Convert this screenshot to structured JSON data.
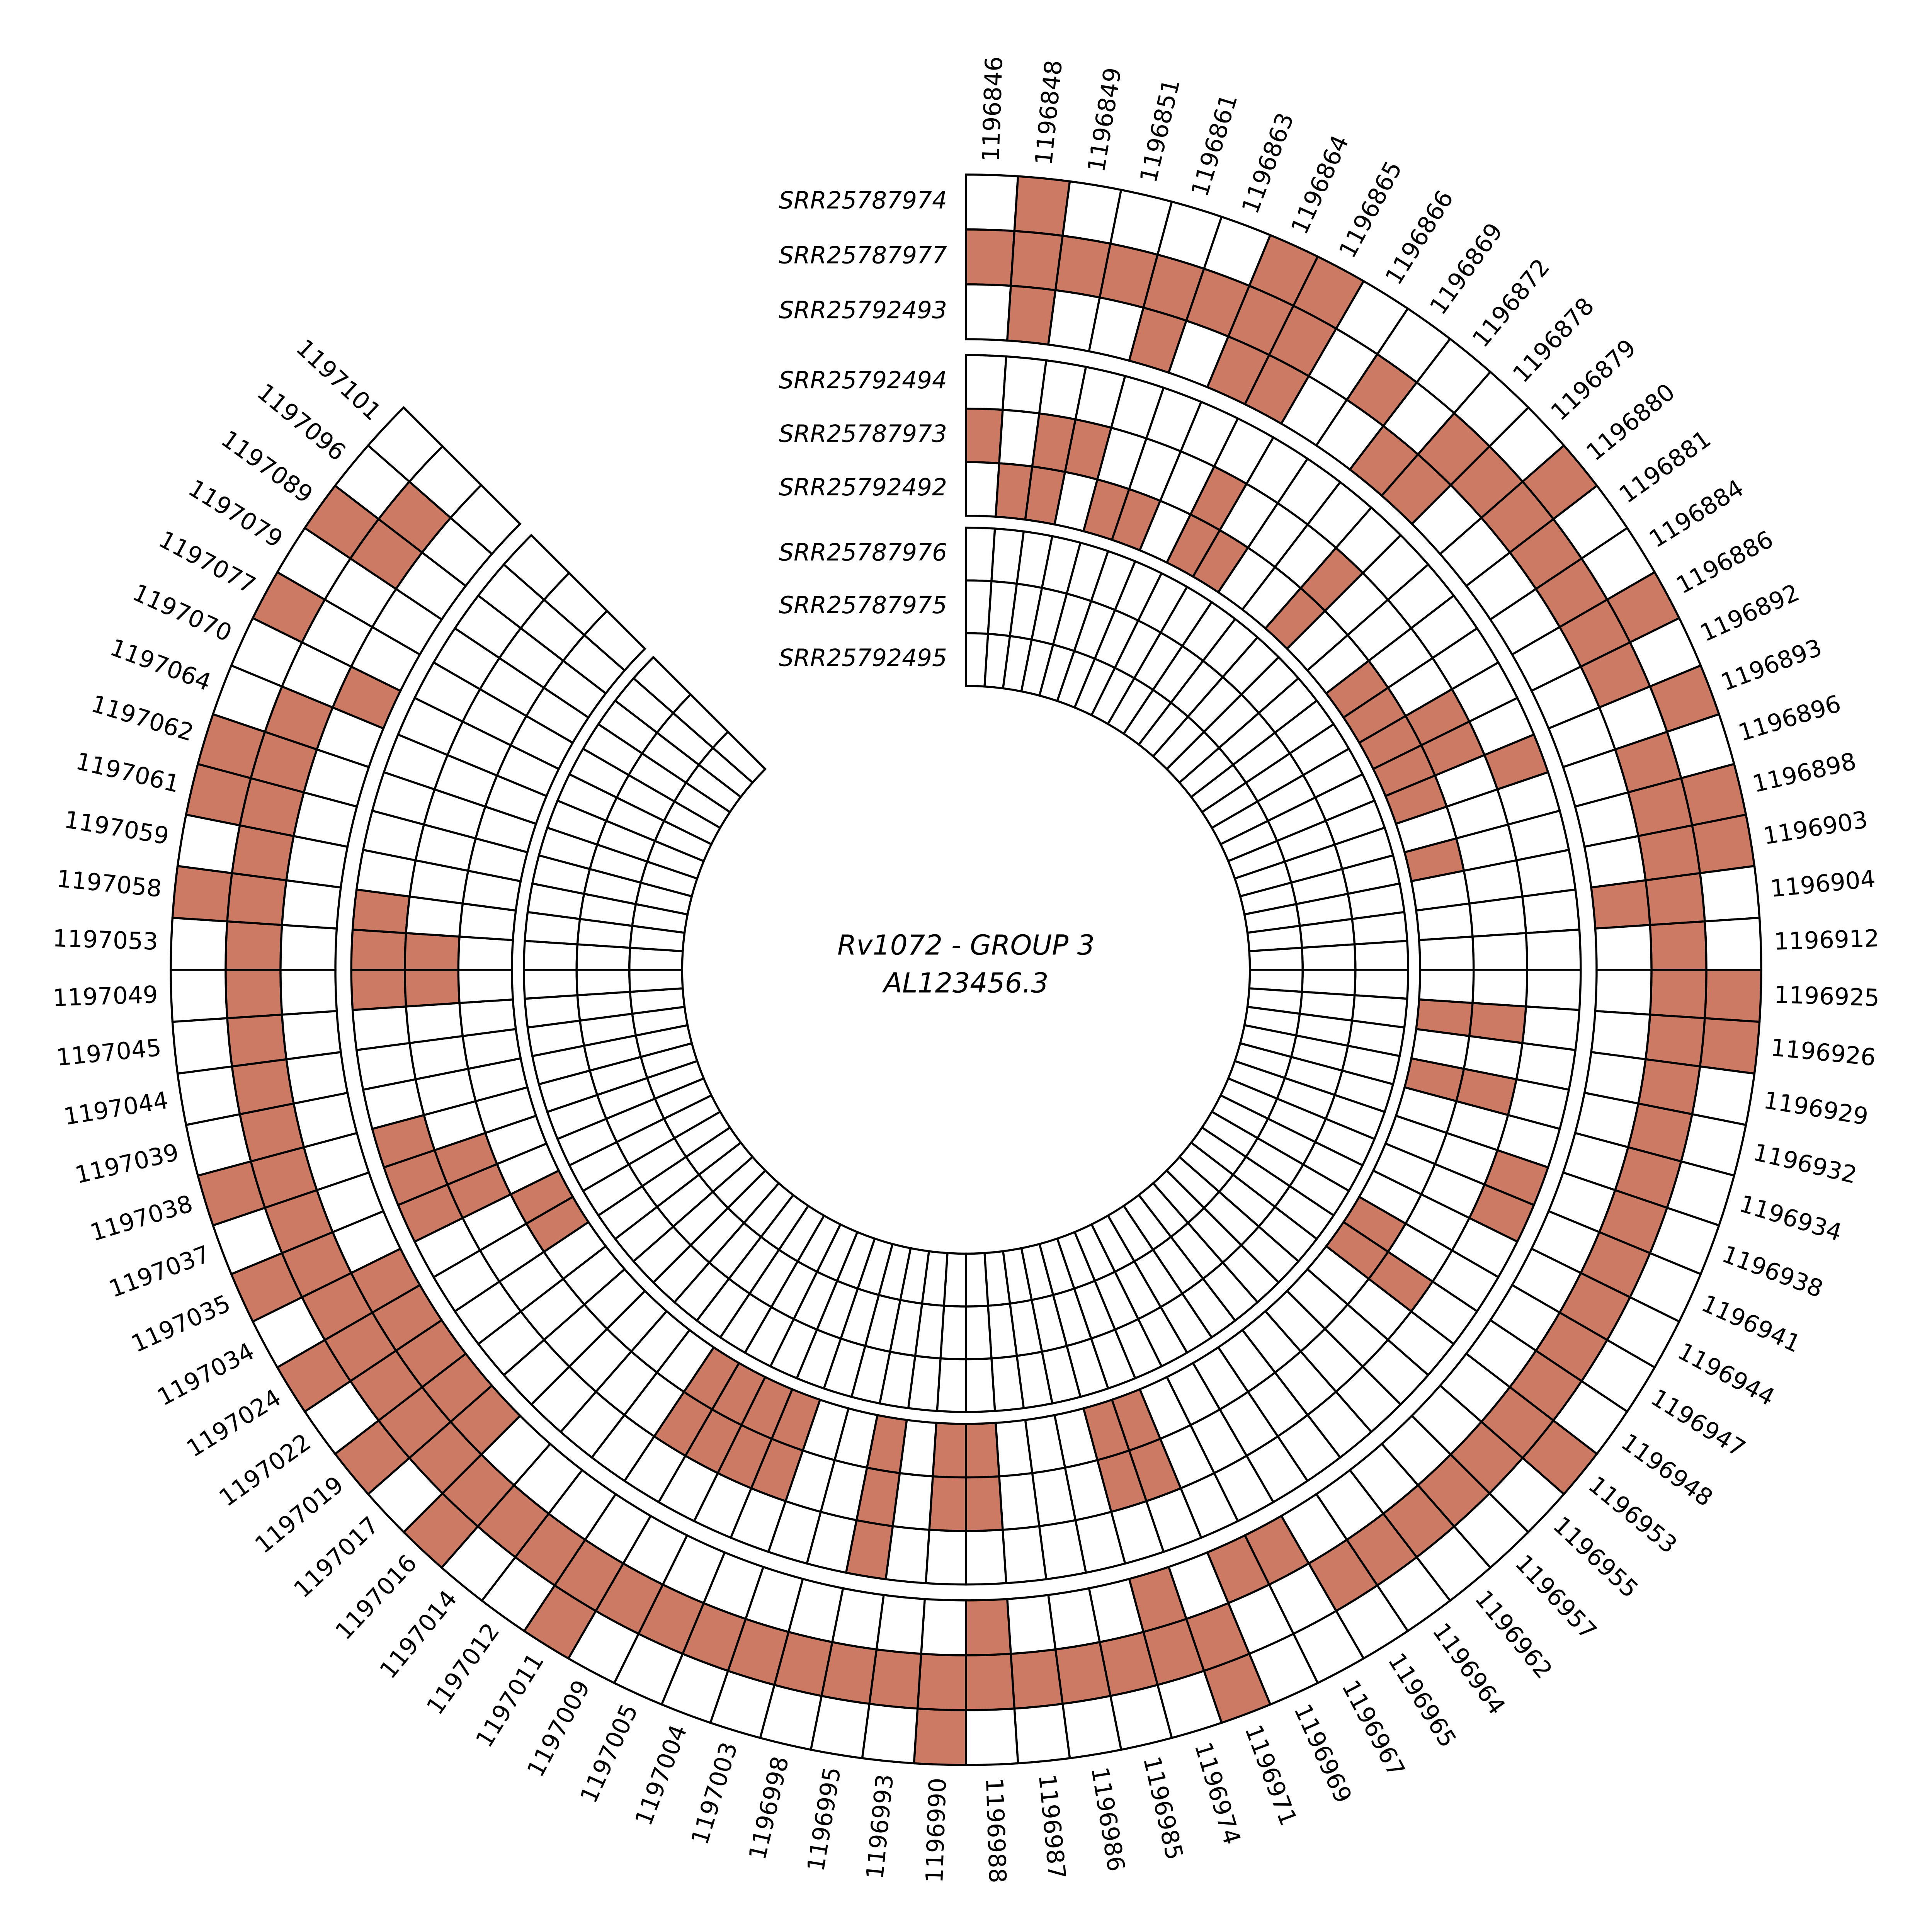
{
  "title": {
    "line1": "Rv1072 - GROUP 3",
    "line2": "AL123456.3"
  },
  "colors": {
    "filled": "#cd7a65",
    "empty": "#ffffff",
    "stroke": "#000000",
    "background": "#ffffff"
  },
  "chart_data": {
    "type": "heatmap",
    "subtype": "circular_annular_heatmap",
    "start_angle_deg": 0,
    "total_angle_deg": 315,
    "clockwise": true,
    "ring_groups": [
      {
        "rings": [
          "SRR25787974",
          "SRR25787977",
          "SRR25792493"
        ],
        "r_inner_frac": 0.793,
        "r_outer_frac": 1.0
      },
      {
        "rings": [
          "SRR25792494",
          "SRR25787973",
          "SRR25792492"
        ],
        "r_inner_frac": 0.571,
        "r_outer_frac": 0.773
      },
      {
        "rings": [
          "SRR25787976",
          "SRR25787975",
          "SRR25792495"
        ],
        "r_inner_frac": 0.357,
        "r_outer_frac": 0.556
      }
    ],
    "positions": [
      "1196846",
      "1196848",
      "1196849",
      "1196851",
      "1196861",
      "1196863",
      "1196864",
      "1196865",
      "1196866",
      "1196869",
      "1196872",
      "1196878",
      "1196879",
      "1196880",
      "1196881",
      "1196884",
      "1196886",
      "1196892",
      "1196893",
      "1196896",
      "1196898",
      "1196903",
      "1196904",
      "1196912",
      "1196925",
      "1196926",
      "1196929",
      "1196932",
      "1196934",
      "1196938",
      "1196941",
      "1196944",
      "1196947",
      "1196948",
      "1196953",
      "1196955",
      "1196957",
      "1196962",
      "1196964",
      "1196965",
      "1196967",
      "1196969",
      "1196971",
      "1196974",
      "1196985",
      "1196986",
      "1196987",
      "1196988",
      "1196990",
      "1196993",
      "1196995",
      "1196998",
      "1197003",
      "1197004",
      "1197005",
      "1197009",
      "1197011",
      "1197012",
      "1197014",
      "1197016",
      "1197017",
      "1197019",
      "1197022",
      "1197024",
      "1197034",
      "1197035",
      "1197037",
      "1197038",
      "1197039",
      "1197044",
      "1197045",
      "1197049",
      "1197053",
      "1197058",
      "1197059",
      "1197061",
      "1197062",
      "1197064",
      "1197070",
      "1197077",
      "1197079",
      "1197089",
      "1197096",
      "1197101"
    ],
    "rings": [
      {
        "name": "SRR25787974",
        "fills": [
          0,
          1,
          0,
          0,
          0,
          0,
          1,
          1,
          0,
          0,
          0,
          0,
          0,
          1,
          0,
          0,
          1,
          0,
          1,
          0,
          1,
          1,
          0,
          0,
          1,
          1,
          0,
          0,
          0,
          0,
          0,
          0,
          0,
          0,
          1,
          0,
          0,
          0,
          0,
          0,
          0,
          0,
          1,
          0,
          0,
          0,
          0,
          0,
          1,
          0,
          0,
          0,
          0,
          0,
          0,
          0,
          1,
          0,
          0,
          1,
          0,
          1,
          0,
          1,
          0,
          1,
          0,
          1,
          0,
          0,
          0,
          0,
          0,
          1,
          0,
          1,
          1,
          0,
          0,
          1,
          0,
          1,
          0,
          0
        ]
      },
      {
        "name": "SRR25787977",
        "fills": [
          1,
          1,
          1,
          1,
          1,
          1,
          1,
          1,
          0,
          1,
          0,
          1,
          1,
          1,
          1,
          1,
          1,
          1,
          0,
          1,
          1,
          1,
          1,
          1,
          1,
          1,
          1,
          1,
          1,
          1,
          1,
          1,
          1,
          1,
          1,
          1,
          1,
          1,
          1,
          1,
          0,
          0,
          1,
          1,
          1,
          1,
          1,
          1,
          1,
          1,
          1,
          1,
          1,
          1,
          1,
          1,
          1,
          1,
          1,
          1,
          1,
          1,
          1,
          1,
          1,
          1,
          1,
          1,
          1,
          1,
          1,
          1,
          1,
          1,
          1,
          1,
          1,
          1,
          0,
          0,
          0,
          1,
          1,
          0
        ]
      },
      {
        "name": "SRR25792493",
        "fills": [
          0,
          1,
          0,
          0,
          1,
          0,
          1,
          1,
          0,
          0,
          1,
          1,
          0,
          0,
          0,
          0,
          0,
          0,
          0,
          0,
          0,
          0,
          1,
          0,
          0,
          0,
          0,
          0,
          0,
          0,
          0,
          0,
          0,
          0,
          0,
          0,
          0,
          0,
          0,
          0,
          1,
          1,
          0,
          1,
          0,
          0,
          0,
          1,
          0,
          0,
          0,
          0,
          0,
          0,
          0,
          0,
          0,
          0,
          0,
          0,
          1,
          1,
          1,
          1,
          1,
          0,
          0,
          0,
          0,
          0,
          0,
          0,
          0,
          0,
          0,
          0,
          0,
          0,
          1,
          0,
          0,
          0,
          0,
          0
        ]
      },
      {
        "name": "SRR25792494",
        "fills": [
          0,
          0,
          0,
          0,
          0,
          0,
          0,
          0,
          0,
          0,
          0,
          0,
          0,
          0,
          0,
          0,
          0,
          0,
          1,
          0,
          0,
          0,
          0,
          0,
          0,
          0,
          0,
          0,
          0,
          1,
          1,
          0,
          0,
          0,
          0,
          0,
          0,
          0,
          0,
          0,
          0,
          0,
          0,
          0,
          0,
          0,
          0,
          0,
          0,
          0,
          1,
          0,
          0,
          0,
          0,
          0,
          0,
          0,
          0,
          0,
          0,
          0,
          0,
          0,
          0,
          1,
          1,
          1,
          0,
          0,
          0,
          1,
          1,
          1,
          0,
          0,
          0,
          0,
          0,
          0,
          0,
          0,
          0,
          0
        ]
      },
      {
        "name": "SRR25787973",
        "fills": [
          1,
          0,
          1,
          1,
          0,
          0,
          0,
          1,
          0,
          0,
          0,
          1,
          0,
          0,
          0,
          0,
          1,
          1,
          0,
          0,
          0,
          0,
          0,
          0,
          0,
          1,
          0,
          1,
          0,
          0,
          0,
          0,
          0,
          1,
          0,
          0,
          0,
          0,
          0,
          0,
          0,
          0,
          1,
          1,
          0,
          0,
          0,
          1,
          1,
          0,
          1,
          0,
          0,
          1,
          1,
          1,
          1,
          0,
          0,
          0,
          0,
          0,
          0,
          0,
          0,
          1,
          1,
          0,
          0,
          0,
          0,
          1,
          1,
          0,
          0,
          0,
          0,
          0,
          0,
          0,
          0,
          0,
          0,
          0
        ]
      },
      {
        "name": "SRR25792492",
        "fills": [
          0,
          1,
          1,
          0,
          1,
          1,
          0,
          1,
          1,
          0,
          0,
          1,
          0,
          0,
          1,
          1,
          1,
          1,
          1,
          0,
          1,
          0,
          0,
          0,
          0,
          1,
          0,
          1,
          0,
          0,
          0,
          0,
          1,
          1,
          0,
          0,
          0,
          0,
          0,
          0,
          0,
          0,
          1,
          1,
          0,
          0,
          0,
          1,
          1,
          0,
          1,
          0,
          0,
          1,
          1,
          1,
          1,
          0,
          0,
          0,
          0,
          0,
          0,
          1,
          1,
          0,
          0,
          0,
          0,
          0,
          0,
          0,
          0,
          0,
          0,
          0,
          0,
          0,
          0,
          0,
          0,
          0,
          0,
          0
        ]
      },
      {
        "name": "SRR25787976",
        "fills": [
          0,
          0,
          0,
          0,
          0,
          0,
          0,
          0,
          0,
          0,
          0,
          0,
          0,
          0,
          0,
          0,
          0,
          0,
          0,
          0,
          0,
          0,
          0,
          0,
          0,
          0,
          0,
          0,
          0,
          0,
          0,
          0,
          0,
          0,
          0,
          0,
          0,
          0,
          0,
          0,
          0,
          0,
          0,
          0,
          0,
          0,
          0,
          0,
          0,
          0,
          0,
          0,
          0,
          0,
          0,
          0,
          0,
          0,
          0,
          0,
          0,
          0,
          0,
          0,
          0,
          0,
          0,
          0,
          0,
          0,
          0,
          0,
          0,
          0,
          0,
          0,
          0,
          0,
          0,
          0,
          0,
          0,
          0,
          0
        ]
      },
      {
        "name": "SRR25787975",
        "fills": [
          0,
          0,
          0,
          0,
          0,
          0,
          0,
          0,
          0,
          0,
          0,
          0,
          0,
          0,
          0,
          0,
          0,
          0,
          0,
          0,
          0,
          0,
          0,
          0,
          0,
          0,
          0,
          0,
          0,
          0,
          0,
          0,
          0,
          0,
          0,
          0,
          0,
          0,
          0,
          0,
          0,
          0,
          0,
          0,
          0,
          0,
          0,
          0,
          0,
          0,
          0,
          0,
          0,
          0,
          0,
          0,
          0,
          0,
          0,
          0,
          0,
          0,
          0,
          0,
          0,
          0,
          0,
          0,
          0,
          0,
          0,
          0,
          0,
          0,
          0,
          0,
          0,
          0,
          0,
          0,
          0,
          0,
          0,
          0
        ]
      },
      {
        "name": "SRR25792495",
        "fills": [
          0,
          0,
          0,
          0,
          0,
          0,
          0,
          0,
          0,
          0,
          0,
          0,
          0,
          0,
          0,
          0,
          0,
          0,
          0,
          0,
          0,
          0,
          0,
          0,
          0,
          0,
          0,
          0,
          0,
          0,
          0,
          0,
          0,
          0,
          0,
          0,
          0,
          0,
          0,
          0,
          0,
          0,
          0,
          0,
          0,
          0,
          0,
          0,
          0,
          0,
          0,
          0,
          0,
          0,
          0,
          0,
          0,
          0,
          0,
          0,
          0,
          0,
          0,
          0,
          0,
          0,
          0,
          0,
          0,
          0,
          0,
          0,
          0,
          0,
          0,
          0,
          0,
          0,
          0,
          0,
          0,
          0,
          0,
          0
        ]
      }
    ],
    "legend_position": "none",
    "grid": true
  }
}
